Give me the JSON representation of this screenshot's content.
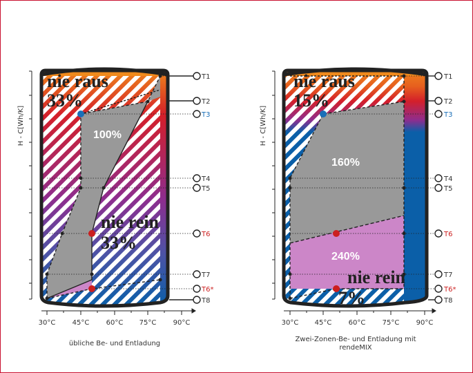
{
  "colors": {
    "frame": "#c8102e",
    "grey": "#999999",
    "hot": "#d41f2a",
    "warm": "#ef7d1a",
    "cold": "#0b5fa8",
    "purple": "#8e2d8e",
    "pink": "#cc86c8",
    "blueLabel": "#1a6fb8",
    "redLabel": "#cc1f1f"
  },
  "yAxis": {
    "label": "H - C[Wh/K]"
  },
  "xAxis": {
    "ticks": [
      "30°C",
      "45°C",
      "60°C",
      "75°C",
      "90°C"
    ]
  },
  "sensors": [
    {
      "label": "T1",
      "color": "#333333"
    },
    {
      "label": "T2",
      "color": "#333333"
    },
    {
      "label": "T3",
      "color": "#1a6fb8"
    },
    {
      "label": "T4",
      "color": "#333333"
    },
    {
      "label": "T5",
      "color": "#333333"
    },
    {
      "label": "T6",
      "color": "#cc1f1f"
    },
    {
      "label": "T7",
      "color": "#333333"
    },
    {
      "label": "T6*",
      "color": "#cc1f1f"
    },
    {
      "label": "T8",
      "color": "#333333"
    }
  ],
  "left": {
    "caption": "übliche Be- und Entladung",
    "never_out": "nie raus",
    "never_out_pct": "33%",
    "main_pct": "100%",
    "never_in": "nie rein",
    "never_in_pct": "33%"
  },
  "right": {
    "caption_line1": "Zwei-Zonen-Be- und Entladung mit",
    "caption_line2": "rendeMIX",
    "never_out": "nie raus",
    "never_out_pct": "15%",
    "upper_pct": "160%",
    "lower_pct": "240%",
    "never_in": "nie rein",
    "never_in_pct": "7%"
  }
}
